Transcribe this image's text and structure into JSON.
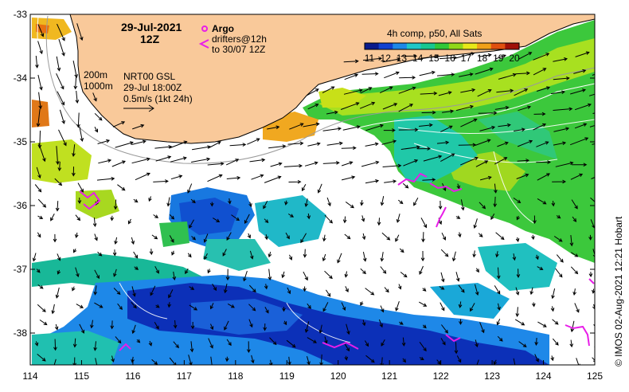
{
  "map": {
    "lon_range": [
      114,
      125
    ],
    "lat_range": [
      -38.5,
      -33
    ],
    "lon_ticks": [
      "114",
      "115",
      "116",
      "117",
      "118",
      "119",
      "120",
      "121",
      "122",
      "123",
      "124",
      "125"
    ],
    "lat_ticks": [
      "-33",
      "-34",
      "-35",
      "-36",
      "-37",
      "-38"
    ],
    "colors": {
      "land": "#f9c99a",
      "argo": "#e81ee8",
      "frame": "#000000"
    }
  },
  "header": {
    "date": "29-Jul-2021",
    "hour": "12Z"
  },
  "legend": {
    "argo_label": "Argo",
    "drifters_line1": "drifters@12h",
    "drifters_line2": "to 30/07 12Z",
    "colorbar_title": "4h comp, p50, All Sats",
    "colorbar_ticks": [
      "11",
      "12",
      "13",
      "14",
      "15",
      "16",
      "17",
      "18",
      "19",
      "20"
    ],
    "colorbar_colors": [
      "#0a1a8c",
      "#1040d0",
      "#1e88e8",
      "#20c8c8",
      "#18c890",
      "#30c838",
      "#90d818",
      "#e8e818",
      "#f0a018",
      "#e05010",
      "#a01008"
    ]
  },
  "notes": {
    "iso_200": "200m",
    "iso_1000": "1000m",
    "gsl": "NRT00 GSL",
    "gsl_time": "29-Jul 18:00Z",
    "scale": "0.5m/s (1kt 24h)"
  },
  "credit": "© IMOS 02-Aug-2021 12:21 Hobart"
}
